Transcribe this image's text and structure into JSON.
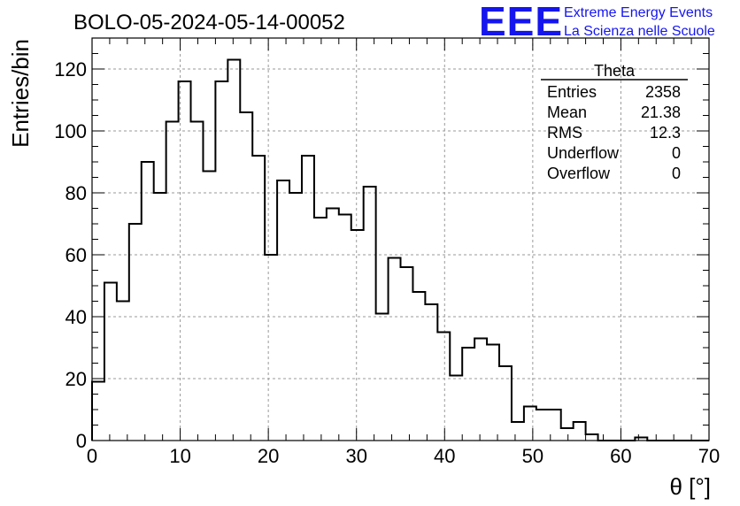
{
  "chart_data": {
    "type": "bar",
    "title": "BOLO-05-2024-05-14-00052",
    "xlabel": "θ [°]",
    "ylabel": "Entries/bin",
    "xlim": [
      0,
      70
    ],
    "ylim": [
      0,
      130
    ],
    "grid": true,
    "bin_edges": [
      0,
      1.4,
      2.8,
      4.2,
      5.6,
      7,
      8.4,
      9.8,
      11.2,
      12.6,
      14,
      15.4,
      16.8,
      18.2,
      19.6,
      21,
      22.4,
      23.8,
      25.2,
      26.6,
      28,
      29.4,
      30.8,
      32.2,
      33.6,
      35,
      36.4,
      37.8,
      39.2,
      40.6,
      42,
      43.4,
      44.8,
      46.2,
      47.6,
      49,
      50.4,
      51.8,
      53.2,
      54.6,
      56,
      57.4,
      58.8,
      60.2,
      61.6,
      63,
      64.4,
      65.8,
      67.2,
      68.6,
      70
    ],
    "values": [
      19,
      51,
      45,
      70,
      90,
      80,
      103,
      116,
      103,
      87,
      116,
      123,
      106,
      92,
      60,
      84,
      80,
      92,
      72,
      75,
      73,
      68,
      82,
      41,
      59,
      56,
      48,
      44,
      35,
      21,
      30,
      33,
      31,
      24,
      6,
      11,
      10,
      10,
      4,
      6,
      2,
      0,
      0,
      0,
      1,
      0,
      0,
      0,
      0,
      0
    ],
    "x_ticks": [
      "0",
      "10",
      "20",
      "30",
      "40",
      "50",
      "60",
      "70"
    ],
    "y_ticks": [
      "0",
      "20",
      "40",
      "60",
      "80",
      "100",
      "120"
    ],
    "stats_box": {
      "title": "Theta",
      "rows": [
        {
          "label": "Entries",
          "value": "2358"
        },
        {
          "label": "Mean",
          "value": "21.38"
        },
        {
          "label": "RMS",
          "value": "12.3"
        },
        {
          "label": "Underflow",
          "value": "0"
        },
        {
          "label": "Overflow",
          "value": "0"
        }
      ]
    }
  },
  "branding": {
    "logo": "EEE",
    "line1": "Extreme Energy Events",
    "line2": "La Scienza nelle Scuole",
    "color": "#1515ee"
  }
}
